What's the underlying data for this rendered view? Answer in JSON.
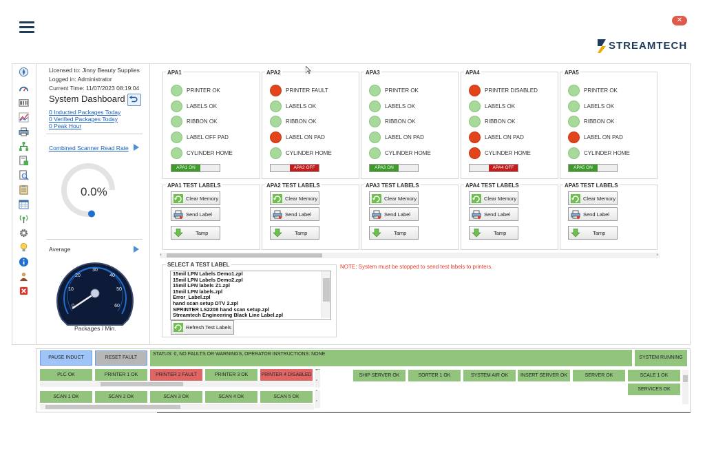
{
  "header": {
    "menu_icon": "hamburger-icon",
    "close_icon": "close-icon",
    "brand": "STREAMTECH"
  },
  "toolbar": {
    "icons": [
      "compass-icon",
      "gauge-icon",
      "barcode-icon",
      "line-chart-icon",
      "printer-icon",
      "network-icon",
      "report-icon",
      "search-doc-icon",
      "clipboard-icon",
      "calendar-icon",
      "antenna-icon",
      "settings-icon",
      "lightbulb-icon",
      "info-icon",
      "user-icon",
      "delete-icon"
    ]
  },
  "session": {
    "licensed": "Licensed to: Jinny Beauty Supplies",
    "logged_in": "Logged in: Administrator",
    "current_time": "Current Time: 11/07/2023 08:19:04",
    "title": "System Dashboard"
  },
  "stats": {
    "inducted": "0 Inducted Packages Today",
    "verified": "0 Verified Packages Today",
    "peak": "0 Peak Hour",
    "scanner_link": "Combined Scanner Read Rate",
    "read_rate": "0.0%",
    "read_rate_value": 0.0,
    "average_label": "Average",
    "speedo_label": "Packages / Min.",
    "speedo_ticks": [
      "0",
      "10",
      "20",
      "30",
      "40",
      "50",
      "60"
    ],
    "speedo_value": 0
  },
  "apas": [
    {
      "name": "APA1",
      "statuses": [
        {
          "label": "PRINTER OK",
          "state": "ok"
        },
        {
          "label": "LABELS OK",
          "state": "ok"
        },
        {
          "label": "RIBBON OK",
          "state": "ok"
        },
        {
          "label": "LABEL OFF PAD",
          "state": "ok"
        },
        {
          "label": "CYLINDER HOME",
          "state": "ok"
        }
      ],
      "toggle": "APA1 ON",
      "on": true,
      "test_title": "APA1 TEST LABELS"
    },
    {
      "name": "APA2",
      "statuses": [
        {
          "label": "PRINTER FAULT",
          "state": "fault"
        },
        {
          "label": "LABELS OK",
          "state": "ok"
        },
        {
          "label": "RIBBON OK",
          "state": "ok"
        },
        {
          "label": "LABEL ON PAD",
          "state": "fault"
        },
        {
          "label": "CYLINDER HOME",
          "state": "ok"
        }
      ],
      "toggle": "APA2 OFF",
      "on": false,
      "test_title": "APA2 TEST LABELS"
    },
    {
      "name": "APA3",
      "statuses": [
        {
          "label": "PRINTER OK",
          "state": "ok"
        },
        {
          "label": "LABELS OK",
          "state": "ok"
        },
        {
          "label": "RIBBON OK",
          "state": "ok"
        },
        {
          "label": "LABEL ON PAD",
          "state": "ok"
        },
        {
          "label": "CYLINDER HOME",
          "state": "ok"
        }
      ],
      "toggle": "APA3 ON",
      "on": true,
      "test_title": "APA3 TEST LABELS"
    },
    {
      "name": "APA4",
      "statuses": [
        {
          "label": "PRINTER DISABLED",
          "state": "fault"
        },
        {
          "label": "LABELS OK",
          "state": "ok"
        },
        {
          "label": "RIBBON OK",
          "state": "ok"
        },
        {
          "label": "LABEL ON PAD",
          "state": "fault"
        },
        {
          "label": "CYLINDER HOME",
          "state": "fault"
        }
      ],
      "toggle": "APA4 OFF",
      "on": false,
      "test_title": "APA4 TEST LABELS"
    },
    {
      "name": "APA5",
      "statuses": [
        {
          "label": "PRINTER OK",
          "state": "ok"
        },
        {
          "label": "LABELS OK",
          "state": "ok"
        },
        {
          "label": "RIBBON OK",
          "state": "ok"
        },
        {
          "label": "LABEL ON PAD",
          "state": "fault"
        },
        {
          "label": "CYLINDER HOME",
          "state": "ok"
        }
      ],
      "toggle": "APA5 ON",
      "on": true,
      "test_title": "APA5 TEST LABELS"
    }
  ],
  "test_buttons": {
    "clear": "Clear Memory",
    "send": "Send Label",
    "tamp": "Tamp"
  },
  "select": {
    "title": "SELECT A TEST LABEL",
    "items": [
      "15mil LPN Labels Demo1.zpl",
      "15mil LPN Labels Demo2.zpl",
      "15mil LPN labels Z1.zpl",
      "15mil LPN labels.zpl",
      "Error_Label.zpl",
      "hand scan setup DTV 2.zpl",
      "SPRINTER LS2208 hand scan setup.zpl",
      "Streamtech Engineering Black Line Label.zpl"
    ],
    "refresh": "Refresh Test Labels",
    "note": "NOTE: System must be stopped to send test labels to printers."
  },
  "bottom": {
    "pause": "PAUSE INDUCT",
    "reset": "RESET FAULT",
    "status": "STATUS: 0, NO FAULTS OR WARNINGS, OPERATOR INSTRUCTIONS: NONE",
    "system_running": "SYSTEM RUNNING",
    "row1": [
      {
        "label": "PLC OK",
        "color": "g"
      },
      {
        "label": "PRINTER 1 OK",
        "color": "g"
      },
      {
        "label": "PRINTER 2 FAULT",
        "color": "r"
      },
      {
        "label": "PRINTER 3 OK",
        "color": "g"
      },
      {
        "label": "PRINTER 4 DISABLED",
        "color": "r"
      }
    ],
    "row2": [
      {
        "label": "SCAN 1 OK",
        "color": "g"
      },
      {
        "label": "SCAN 2 OK",
        "color": "g"
      },
      {
        "label": "SCAN 3 OK",
        "color": "g"
      },
      {
        "label": "SCAN 4 OK",
        "color": "g"
      },
      {
        "label": "SCAN 5 OK",
        "color": "g"
      }
    ],
    "servers": [
      {
        "label": "SHIP SERVER OK",
        "color": "g"
      },
      {
        "label": "SORTER 1 OK",
        "color": "g"
      },
      {
        "label": "SYSTEM AIR OK",
        "color": "g"
      },
      {
        "label": "INSERT SERVER OK",
        "color": "g"
      },
      {
        "label": "SERVER OK",
        "color": "g"
      }
    ],
    "scale": "SCALE 1 OK",
    "services": "SERVICES OK"
  }
}
